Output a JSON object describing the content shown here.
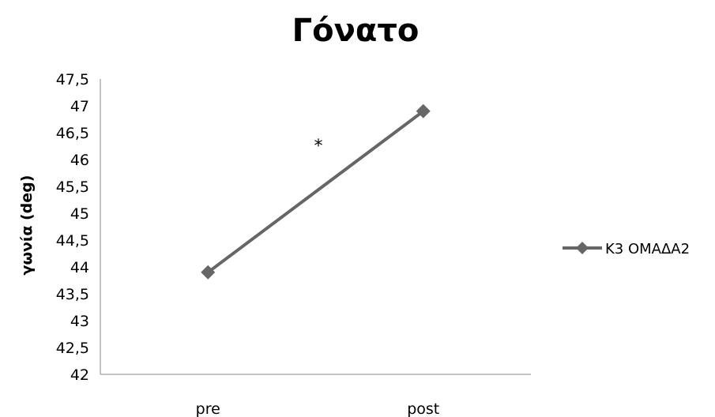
{
  "chart_data": {
    "type": "line",
    "title": "Γόνατο",
    "xlabel": "",
    "ylabel": "γωνία (deg)",
    "categories": [
      "pre",
      "post"
    ],
    "series": [
      {
        "name": "Κ3 ΟΜΑΔΑ2",
        "values": [
          43.9,
          46.9
        ],
        "color": "#666666",
        "marker": "diamond"
      }
    ],
    "ylim": [
      42,
      47.5
    ],
    "yticks": [
      "42",
      "42,5",
      "43",
      "43,5",
      "44",
      "44,5",
      "45",
      "45,5",
      "46",
      "46,5",
      "47",
      "47,5"
    ],
    "annotations": [
      "*"
    ],
    "legend_position": "right",
    "grid": false
  }
}
